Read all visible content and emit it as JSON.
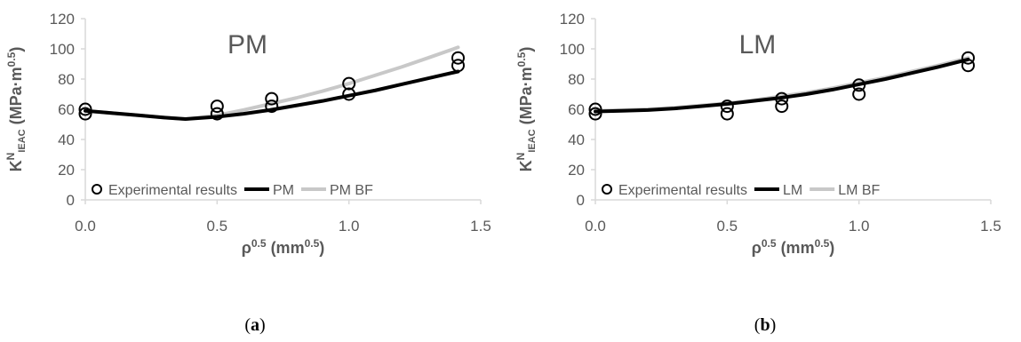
{
  "chart_data": [
    {
      "type": "line",
      "title": "PM",
      "panel_label": "a",
      "xlabel": {
        "main": "ρ",
        "sup": "0.5",
        "unit": "mm",
        "unit_sup": "0.5"
      },
      "ylabel": {
        "main": "K",
        "sup": "N",
        "sub": "IEAC",
        "unit": "MPa·m",
        "unit_sup": "0.5"
      },
      "xlim": [
        0,
        1.5
      ],
      "ylim": [
        0,
        120
      ],
      "xticks": [
        "0.0",
        "0.5",
        "1.0",
        "1.5"
      ],
      "yticks": [
        "0",
        "20",
        "40",
        "60",
        "80",
        "100",
        "120"
      ],
      "grid": false,
      "legend_position": "bottom",
      "series": [
        {
          "name": "Experimental results",
          "kind": "scatter",
          "color": "#000000",
          "points": [
            [
              0,
              60
            ],
            [
              0,
              57
            ],
            [
              0.5,
              62
            ],
            [
              0.5,
              57
            ],
            [
              0.707,
              67
            ],
            [
              0.707,
              62
            ],
            [
              1.0,
              77
            ],
            [
              1.0,
              70
            ],
            [
              1.414,
              94
            ],
            [
              1.414,
              89
            ]
          ]
        },
        {
          "name": "PM",
          "kind": "line",
          "color": "#000000",
          "points": [
            [
              0,
              59
            ],
            [
              0.1,
              57.5
            ],
            [
              0.2,
              56
            ],
            [
              0.3,
              54.5
            ],
            [
              0.38,
              53.5
            ],
            [
              0.5,
              55
            ],
            [
              0.6,
              57
            ],
            [
              0.7,
              59.5
            ],
            [
              0.8,
              62.5
            ],
            [
              0.9,
              65.5
            ],
            [
              1.0,
              69
            ],
            [
              1.1,
              72.5
            ],
            [
              1.2,
              76.5
            ],
            [
              1.3,
              80.5
            ],
            [
              1.414,
              85
            ]
          ]
        },
        {
          "name": "PM BF",
          "kind": "line",
          "color": "#c8c8c8",
          "points": [
            [
              0,
              59
            ],
            [
              0.1,
              57.5
            ],
            [
              0.2,
              56
            ],
            [
              0.3,
              54.5
            ],
            [
              0.38,
              53.5
            ],
            [
              0.5,
              56
            ],
            [
              0.6,
              59.5
            ],
            [
              0.7,
              63.5
            ],
            [
              0.8,
              67.5
            ],
            [
              0.9,
              72
            ],
            [
              1.0,
              77
            ],
            [
              1.1,
              82.5
            ],
            [
              1.2,
              88
            ],
            [
              1.3,
              94
            ],
            [
              1.414,
              101
            ]
          ]
        }
      ]
    },
    {
      "type": "line",
      "title": "LM",
      "panel_label": "b",
      "xlabel": {
        "main": "ρ",
        "sup": "0.5",
        "unit": "mm",
        "unit_sup": "0.5"
      },
      "ylabel": {
        "main": "K",
        "sup": "N",
        "sub": "IEAC",
        "unit": "MPa·m",
        "unit_sup": "0.5"
      },
      "xlim": [
        0,
        1.5
      ],
      "ylim": [
        0,
        120
      ],
      "xticks": [
        "0.0",
        "0.5",
        "1.0",
        "1.5"
      ],
      "yticks": [
        "0",
        "20",
        "40",
        "60",
        "80",
        "100",
        "120"
      ],
      "grid": false,
      "legend_position": "bottom",
      "series": [
        {
          "name": "Experimental results",
          "kind": "scatter",
          "color": "#000000",
          "points": [
            [
              0,
              60
            ],
            [
              0,
              57
            ],
            [
              0.5,
              62
            ],
            [
              0.5,
              57
            ],
            [
              0.707,
              67
            ],
            [
              0.707,
              62
            ],
            [
              1.0,
              76
            ],
            [
              1.0,
              70
            ],
            [
              1.414,
              94
            ],
            [
              1.414,
              89
            ]
          ]
        },
        {
          "name": "LM",
          "kind": "line",
          "color": "#000000",
          "points": [
            [
              0,
              58.5
            ],
            [
              0.1,
              59
            ],
            [
              0.2,
              59.5
            ],
            [
              0.3,
              60.5
            ],
            [
              0.4,
              62
            ],
            [
              0.5,
              63.5
            ],
            [
              0.6,
              65.5
            ],
            [
              0.7,
              67.5
            ],
            [
              0.8,
              70
            ],
            [
              0.9,
              73
            ],
            [
              1.0,
              76.5
            ],
            [
              1.1,
              80
            ],
            [
              1.2,
              84
            ],
            [
              1.3,
              88
            ],
            [
              1.414,
              93
            ]
          ]
        },
        {
          "name": "LM BF",
          "kind": "line",
          "color": "#c8c8c8",
          "points": [
            [
              0,
              59
            ],
            [
              0.1,
              59.5
            ],
            [
              0.2,
              60
            ],
            [
              0.3,
              61
            ],
            [
              0.4,
              62.5
            ],
            [
              0.5,
              64
            ],
            [
              0.6,
              66
            ],
            [
              0.7,
              68.5
            ],
            [
              0.8,
              71
            ],
            [
              0.9,
              74
            ],
            [
              1.0,
              77.5
            ],
            [
              1.1,
              81
            ],
            [
              1.2,
              85
            ],
            [
              1.3,
              89
            ],
            [
              1.414,
              94
            ]
          ]
        }
      ]
    }
  ]
}
